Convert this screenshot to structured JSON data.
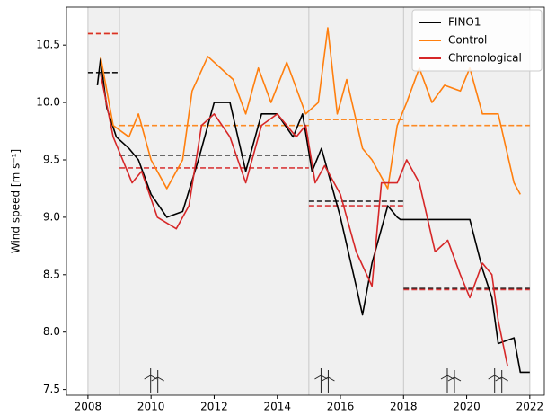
{
  "chart_data": {
    "type": "line",
    "y_label": "Wind speed [m s⁻¹]",
    "xlim": [
      2007.32,
      2022.46
    ],
    "ylim": [
      7.45,
      10.83
    ],
    "xticks": [
      2008,
      2010,
      2012,
      2014,
      2016,
      2018,
      2020,
      2022
    ],
    "yticks": [
      7.5,
      {
        "value": 8,
        "label": "8.0"
      },
      8.5,
      {
        "value": 9,
        "label": "9.0"
      },
      9.5,
      {
        "value": 10,
        "label": "10.0"
      },
      10.5
    ],
    "period_edges": [
      2008,
      2009,
      2015,
      2018,
      2022
    ],
    "markers_x": [
      2010.1,
      2015.5,
      2019.5,
      2021.0
    ],
    "legend": "upper right",
    "series": [
      {
        "name": "FINO1",
        "color": "#000000",
        "x": [
          2008.3,
          2008.4,
          2008.6,
          2008.9,
          2009.3,
          2009.6,
          2010,
          2010.5,
          2011,
          2011.5,
          2012,
          2012.5,
          2013,
          2013.5,
          2014,
          2014.5,
          2014.8,
          2015.1,
          2015.4,
          2016,
          2016.5,
          2016.7,
          2017,
          2017.5,
          2017.8,
          2017.9,
          2020.1,
          2020.5,
          2020.8,
          2021,
          2021.5,
          2021.7,
          2022
        ],
        "values": [
          10.15,
          10.38,
          9.95,
          9.7,
          9.6,
          9.5,
          9.2,
          9.0,
          9.05,
          9.5,
          10.0,
          10.0,
          9.4,
          9.9,
          9.9,
          9.7,
          9.9,
          9.4,
          9.6,
          9.0,
          8.4,
          8.15,
          8.6,
          9.1,
          9.0,
          8.98,
          8.98,
          8.55,
          8.3,
          7.9,
          7.95,
          7.65,
          7.65
        ],
        "mean_segments": [
          {
            "x": [
              2008,
              2009
            ],
            "value": 10.26
          },
          {
            "x": [
              2009,
              2015
            ],
            "value": 9.54
          },
          {
            "x": [
              2015,
              2018
            ],
            "value": 9.14
          },
          {
            "x": [
              2018,
              2022
            ],
            "value": 8.38
          }
        ]
      },
      {
        "name": "Control",
        "color": "#ff7f0e",
        "x": [
          2008.4,
          2008.8,
          2009.3,
          2009.6,
          2010,
          2010.5,
          2011,
          2011.3,
          2011.8,
          2012.2,
          2012.6,
          2013,
          2013.4,
          2013.8,
          2014.3,
          2014.9,
          2015.3,
          2015.6,
          2015.9,
          2016.2,
          2016.7,
          2017,
          2017.5,
          2017.8,
          2018.1,
          2018.5,
          2018.9,
          2019.3,
          2019.8,
          2020.1,
          2020.5,
          2021,
          2021.5,
          2021.7
        ],
        "values": [
          10.4,
          9.8,
          9.7,
          9.9,
          9.5,
          9.25,
          9.5,
          10.1,
          10.4,
          10.3,
          10.2,
          9.9,
          10.3,
          10.0,
          10.35,
          9.9,
          10.0,
          10.65,
          9.9,
          10.2,
          9.6,
          9.5,
          9.25,
          9.8,
          10.0,
          10.3,
          10.0,
          10.15,
          10.1,
          10.3,
          9.9,
          9.9,
          9.3,
          9.2
        ],
        "mean_segments": [
          {
            "x": [
              2008,
              2009
            ],
            "value": 10.6
          },
          {
            "x": [
              2009,
              2015
            ],
            "value": 9.8
          },
          {
            "x": [
              2015,
              2018
            ],
            "value": 9.85
          },
          {
            "x": [
              2018,
              2022
            ],
            "value": 9.8
          }
        ]
      },
      {
        "name": "Chronological",
        "color": "#d62728",
        "x": [
          2008.4,
          2008.8,
          2009.4,
          2009.7,
          2010.2,
          2010.8,
          2011.2,
          2011.6,
          2012,
          2012.5,
          2013,
          2013.5,
          2014,
          2014.6,
          2014.9,
          2015.2,
          2015.5,
          2016,
          2016.5,
          2017,
          2017.3,
          2017.8,
          2018.1,
          2018.5,
          2019,
          2019.4,
          2019.8,
          2020.1,
          2020.5,
          2020.8,
          2021,
          2021.3
        ],
        "values": [
          10.25,
          9.7,
          9.3,
          9.4,
          9.0,
          8.9,
          9.1,
          9.8,
          9.9,
          9.7,
          9.3,
          9.8,
          9.9,
          9.7,
          9.8,
          9.3,
          9.45,
          9.2,
          8.7,
          8.4,
          9.3,
          9.3,
          9.5,
          9.3,
          8.7,
          8.8,
          8.5,
          8.3,
          8.6,
          8.5,
          8.1,
          7.7
        ],
        "mean_segments": [
          {
            "x": [
              2008,
              2009
            ],
            "value": 10.6
          },
          {
            "x": [
              2009,
              2015
            ],
            "value": 9.43
          },
          {
            "x": [
              2015,
              2018
            ],
            "value": 9.1
          },
          {
            "x": [
              2018,
              2022
            ],
            "value": 8.37
          }
        ]
      }
    ]
  }
}
